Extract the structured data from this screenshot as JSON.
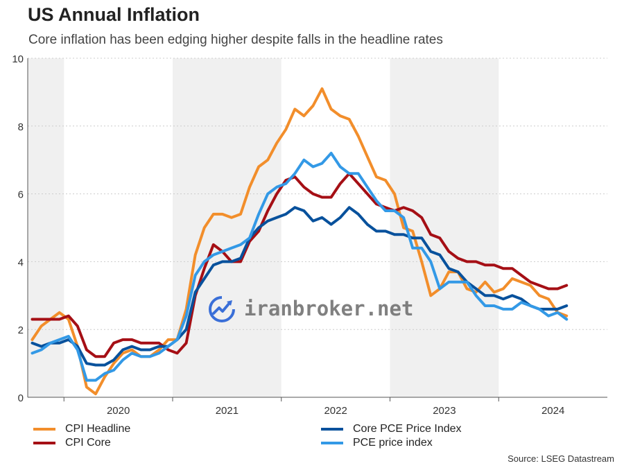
{
  "header": {
    "title": "US Annual Inflation",
    "subtitle": "Core inflation has been edging higher despite falls in the headline rates"
  },
  "source": "Source: LSEG Datastream",
  "watermark": "iranbroker.net",
  "colors": {
    "cpi_headline": "#f28e2b",
    "cpi_core": "#a50f15",
    "core_pce": "#08519c",
    "pce": "#3399e6",
    "shade": "#f0f0f0",
    "grid": "#cccccc",
    "watermark_icon": "#3a6fd8"
  },
  "chart_data": {
    "type": "line",
    "title": "US Annual Inflation",
    "subtitle": "Core inflation has been edging higher despite falls in the headline rates",
    "xlabel": "",
    "ylabel": "",
    "x_start": "2019-09",
    "x_frequency": "monthly",
    "xlim": [
      "2019-09",
      "2024-12"
    ],
    "ylim": [
      0,
      10
    ],
    "yticks": [
      0,
      2,
      4,
      6,
      8,
      10
    ],
    "year_labels": [
      "2020",
      "2021",
      "2022",
      "2023",
      "2024"
    ],
    "grid": "horizontal dotted",
    "shaded_years": [
      "2019",
      "2021",
      "2023"
    ],
    "legend_position": "bottom",
    "series": [
      {
        "name": "CPI Headline",
        "color": "#f28e2b",
        "values": [
          1.7,
          2.1,
          2.3,
          2.5,
          2.3,
          1.5,
          0.3,
          0.1,
          0.6,
          1.0,
          1.3,
          1.4,
          1.2,
          1.2,
          1.4,
          1.7,
          1.7,
          2.6,
          4.2,
          5.0,
          5.4,
          5.4,
          5.3,
          5.4,
          6.2,
          6.8,
          7.0,
          7.5,
          7.9,
          8.5,
          8.3,
          8.6,
          9.1,
          8.5,
          8.3,
          8.2,
          7.7,
          7.1,
          6.5,
          6.4,
          6.0,
          5.0,
          4.9,
          4.0,
          3.0,
          3.2,
          3.7,
          3.7,
          3.2,
          3.1,
          3.4,
          3.1,
          3.2,
          3.5,
          3.4,
          3.3,
          3.0,
          2.9,
          2.5,
          2.4
        ]
      },
      {
        "name": "CPI Core",
        "color": "#a50f15",
        "values": [
          2.3,
          2.3,
          2.3,
          2.3,
          2.4,
          2.1,
          1.4,
          1.2,
          1.2,
          1.6,
          1.7,
          1.7,
          1.6,
          1.6,
          1.6,
          1.4,
          1.3,
          1.6,
          3.0,
          3.8,
          4.5,
          4.3,
          4.0,
          4.0,
          4.6,
          4.9,
          5.5,
          6.0,
          6.4,
          6.5,
          6.2,
          6.0,
          5.9,
          5.9,
          6.3,
          6.6,
          6.3,
          6.0,
          5.7,
          5.6,
          5.5,
          5.6,
          5.5,
          5.3,
          4.8,
          4.7,
          4.3,
          4.1,
          4.0,
          4.0,
          3.9,
          3.9,
          3.8,
          3.8,
          3.6,
          3.4,
          3.3,
          3.2,
          3.2,
          3.3
        ]
      },
      {
        "name": "Core PCE Price Index",
        "color": "#08519c",
        "values": [
          1.6,
          1.5,
          1.6,
          1.6,
          1.7,
          1.5,
          1.0,
          0.95,
          0.95,
          1.1,
          1.4,
          1.5,
          1.4,
          1.4,
          1.5,
          1.5,
          1.7,
          2.0,
          3.1,
          3.5,
          3.9,
          4.0,
          4.0,
          4.1,
          4.7,
          5.0,
          5.2,
          5.3,
          5.4,
          5.6,
          5.5,
          5.2,
          5.3,
          5.1,
          5.3,
          5.6,
          5.4,
          5.1,
          4.9,
          4.9,
          4.8,
          4.8,
          4.7,
          4.7,
          4.3,
          4.2,
          3.8,
          3.7,
          3.4,
          3.2,
          3.0,
          3.0,
          2.9,
          3.0,
          2.9,
          2.7,
          2.6,
          2.6,
          2.6,
          2.7
        ]
      },
      {
        "name": "PCE price index",
        "color": "#3399e6",
        "values": [
          1.3,
          1.4,
          1.6,
          1.7,
          1.8,
          1.4,
          0.5,
          0.5,
          0.7,
          0.8,
          1.1,
          1.3,
          1.2,
          1.2,
          1.3,
          1.5,
          1.7,
          2.4,
          3.6,
          4.0,
          4.2,
          4.3,
          4.4,
          4.5,
          4.7,
          5.4,
          6.0,
          6.2,
          6.3,
          6.6,
          7.0,
          6.8,
          6.9,
          7.2,
          6.8,
          6.6,
          6.6,
          6.2,
          5.8,
          5.5,
          5.5,
          5.3,
          4.4,
          4.4,
          4.0,
          3.2,
          3.4,
          3.4,
          3.4,
          3.0,
          2.7,
          2.7,
          2.6,
          2.6,
          2.8,
          2.7,
          2.6,
          2.4,
          2.5,
          2.3
        ]
      }
    ]
  }
}
